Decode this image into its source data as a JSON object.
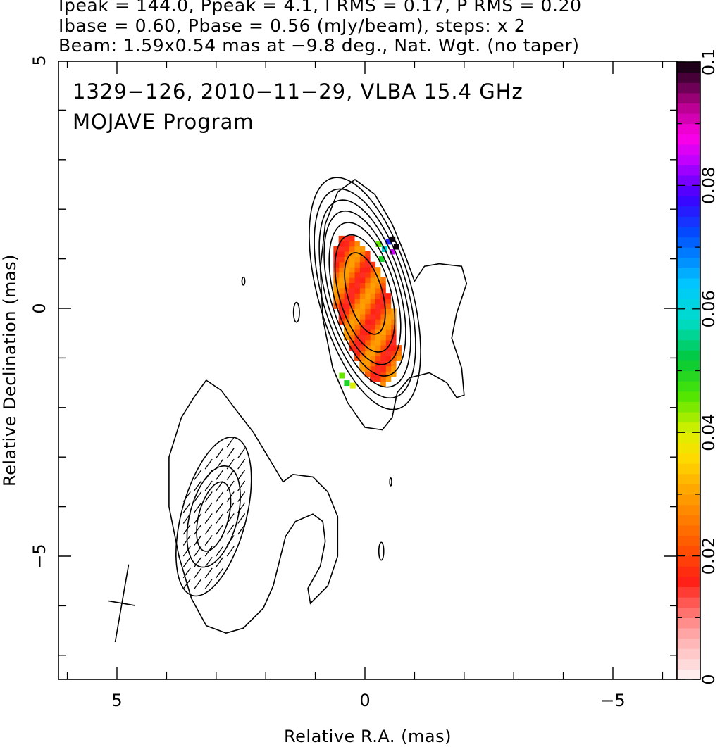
{
  "header": {
    "line1": "Ipeak = 144.0, Ppeak = 4.1, I RMS = 0.17, P RMS = 0.20",
    "line2": "Ibase = 0.60, Pbase = 0.56 (mJy/beam), steps: x 2",
    "line3": "Beam: 1.59x0.54 mas at −9.8 deg., Nat. Wgt. (no taper)"
  },
  "chart_data": {
    "type": "heatmap",
    "title": "1329−126, 2010−11−29, VLBA 15.4 GHz",
    "subtitle": "MOJAVE Program",
    "xlabel": "Relative R.A. (mas)",
    "ylabel": "Relative Declination (mas)",
    "xlim": [
      6.3,
      -6.3
    ],
    "ylim": [
      -7.5,
      5
    ],
    "x_ticks": [
      {
        "value": 5,
        "label": "5"
      },
      {
        "value": 0,
        "label": "0"
      },
      {
        "value": -5,
        "label": "−5"
      }
    ],
    "y_ticks": [
      {
        "value": 5,
        "label": "5"
      },
      {
        "value": 0,
        "label": "0"
      },
      {
        "value": -5,
        "label": "−5"
      }
    ],
    "colorbar": {
      "range": [
        0,
        0.1
      ],
      "ticks": [
        {
          "value": 0,
          "label": "0"
        },
        {
          "value": 0.02,
          "label": "0.02"
        },
        {
          "value": 0.04,
          "label": "0.04"
        },
        {
          "value": 0.06,
          "label": "0.06"
        },
        {
          "value": 0.08,
          "label": "0.08"
        },
        {
          "value": 0.1,
          "label": "0.1"
        }
      ]
    },
    "beam": {
      "major_mas": 1.59,
      "minor_mas": 0.54,
      "pa_deg": -9.8,
      "center": [
        4.9,
        -5.95
      ]
    },
    "core_contours": {
      "center": [
        0.0,
        0.3
      ],
      "pa_deg": -16,
      "levels_axes": [
        [
          0.35,
          0.85
        ],
        [
          0.52,
          1.22
        ],
        [
          0.62,
          1.48
        ],
        [
          0.7,
          1.72
        ],
        [
          0.78,
          1.95
        ],
        [
          0.86,
          2.18
        ],
        [
          0.94,
          2.42
        ]
      ]
    },
    "outer_contours": {
      "core_envelope": [
        [
          0.2,
          2.6
        ],
        [
          0.55,
          2.35
        ],
        [
          0.8,
          1.7
        ],
        [
          0.9,
          0.8
        ],
        [
          0.85,
          -0.2
        ],
        [
          0.65,
          -1.2
        ],
        [
          0.35,
          -1.9
        ],
        [
          0.0,
          -2.4
        ],
        [
          -0.35,
          -2.45
        ],
        [
          -0.55,
          -2.2
        ],
        [
          -0.65,
          -1.7
        ],
        [
          -0.9,
          -1.4
        ],
        [
          -1.3,
          -1.3
        ],
        [
          -1.65,
          -1.5
        ],
        [
          -1.85,
          -1.8
        ],
        [
          -2.0,
          -1.75
        ],
        [
          -1.95,
          -1.2
        ],
        [
          -1.75,
          -0.6
        ],
        [
          -1.85,
          -0.1
        ],
        [
          -2.05,
          0.5
        ],
        [
          -1.95,
          0.85
        ],
        [
          -1.5,
          0.9
        ],
        [
          -1.2,
          0.85
        ],
        [
          -1.0,
          0.55
        ],
        [
          -0.8,
          1.1
        ],
        [
          -0.55,
          1.7
        ],
        [
          -0.2,
          2.3
        ],
        [
          0.2,
          2.6
        ]
      ],
      "jet_outer": [
        [
          3.2,
          -1.45
        ],
        [
          3.45,
          -1.8
        ],
        [
          3.7,
          -2.2
        ],
        [
          3.95,
          -3.0
        ],
        [
          3.95,
          -4.0
        ],
        [
          3.75,
          -5.0
        ],
        [
          3.5,
          -5.85
        ],
        [
          3.2,
          -6.4
        ],
        [
          2.8,
          -6.55
        ],
        [
          2.45,
          -6.45
        ],
        [
          2.05,
          -6.05
        ],
        [
          1.85,
          -5.6
        ],
        [
          1.7,
          -5.0
        ],
        [
          1.6,
          -4.6
        ],
        [
          1.4,
          -4.3
        ],
        [
          1.05,
          -4.15
        ],
        [
          0.85,
          -4.3
        ],
        [
          0.8,
          -4.7
        ],
        [
          0.9,
          -5.2
        ],
        [
          1.15,
          -5.65
        ],
        [
          1.1,
          -5.95
        ],
        [
          0.75,
          -5.6
        ],
        [
          0.55,
          -5.0
        ],
        [
          0.55,
          -4.2
        ],
        [
          0.75,
          -3.7
        ],
        [
          1.05,
          -3.4
        ],
        [
          1.45,
          -3.35
        ],
        [
          1.65,
          -3.5
        ],
        [
          1.95,
          -3.0
        ],
        [
          2.25,
          -2.5
        ],
        [
          2.6,
          -2.05
        ],
        [
          2.9,
          -1.65
        ],
        [
          3.2,
          -1.45
        ]
      ]
    },
    "jet_contours": {
      "center": [
        3.05,
        -4.2
      ],
      "pa_deg": 15,
      "levels_axes": [
        [
          0.3,
          0.72
        ],
        [
          0.48,
          1.05
        ],
        [
          0.65,
          1.65
        ]
      ]
    },
    "small_islands": [
      {
        "center": [
          2.45,
          0.55
        ],
        "axes": [
          0.03,
          0.08
        ]
      },
      {
        "center": [
          1.38,
          -0.08
        ],
        "axes": [
          0.06,
          0.2
        ]
      },
      {
        "center": [
          -0.52,
          -3.5
        ],
        "axes": [
          0.02,
          0.08
        ]
      },
      {
        "center": [
          -0.33,
          -4.9
        ],
        "axes": [
          0.05,
          0.18
        ]
      }
    ],
    "polarization_patch": {
      "center": [
        0.05,
        0.0
      ],
      "pa_deg": -16,
      "axes": [
        0.55,
        1.55
      ],
      "value_fraction_range": [
        0.015,
        0.03
      ],
      "edge_pixels": [
        {
          "x": -0.34,
          "y": 1.25,
          "v": 0.06
        },
        {
          "x": -0.42,
          "y": 1.4,
          "v": 0.075
        },
        {
          "x": -0.5,
          "y": 1.45,
          "v": 0.1
        },
        {
          "x": -0.58,
          "y": 1.3,
          "v": 0.1
        },
        {
          "x": -0.5,
          "y": 1.2,
          "v": 0.085
        },
        {
          "x": -0.22,
          "y": 1.35,
          "v": 0.045
        },
        {
          "x": -0.28,
          "y": 1.05,
          "v": 0.05
        },
        {
          "x": 0.42,
          "y": -1.45,
          "v": 0.05
        },
        {
          "x": 0.3,
          "y": -1.5,
          "v": 0.04
        },
        {
          "x": 0.52,
          "y": -1.3,
          "v": 0.045
        }
      ]
    }
  }
}
